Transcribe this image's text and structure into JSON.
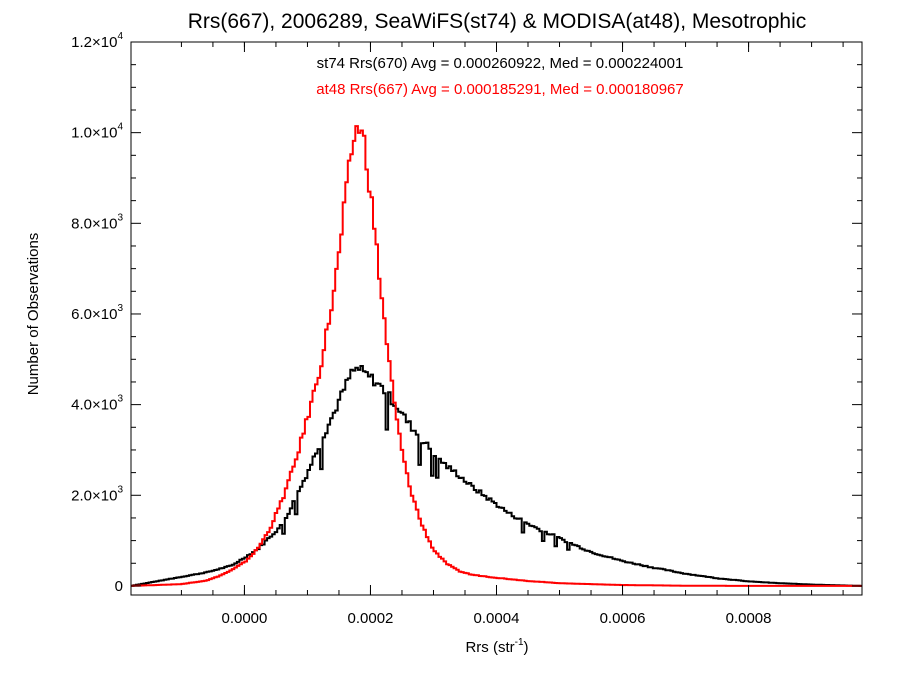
{
  "chart_data": {
    "type": "line",
    "title": "Rrs(667), 2006289, SeaWiFS(st74) & MODISA(at48), Mesotrophic",
    "xlabel": "Rrs (str",
    "xlabel_sup": "-1",
    "xlabel_close": ")",
    "ylabel": "Number of Observations",
    "xlim": [
      -0.00018,
      0.00098
    ],
    "ylim": [
      -200,
      12000
    ],
    "x_ticks": [
      0.0,
      0.0002,
      0.0004,
      0.0006,
      0.0008
    ],
    "x_tick_labels": [
      "0.0000",
      "0.0002",
      "0.0004",
      "0.0006",
      "0.0008"
    ],
    "y_ticks": [
      0,
      2000,
      4000,
      6000,
      8000,
      10000,
      12000
    ],
    "y_tick_labels": [
      {
        "base": "0",
        "exp": ""
      },
      {
        "base": "2.0×10",
        "exp": "3"
      },
      {
        "base": "4.0×10",
        "exp": "3"
      },
      {
        "base": "6.0×10",
        "exp": "3"
      },
      {
        "base": "8.0×10",
        "exp": "3"
      },
      {
        "base": "1.0×10",
        "exp": "4"
      },
      {
        "base": "1.2×10",
        "exp": "4"
      }
    ],
    "grid": false,
    "legend_placement": "top-center",
    "annotations": [
      {
        "text": "st74 Rrs(670) Avg = 0.000260922, Med = 0.000224001",
        "color": "#000000"
      },
      {
        "text": "at48 Rrs(667) Avg = 0.000185291, Med = 0.000180967",
        "color": "#ff0000"
      }
    ],
    "series": [
      {
        "color": "#000000",
        "style": "step",
        "x": [
          -0.00018,
          -0.00012,
          -6e-05,
          -2e-05,
          2e-05,
          6e-05,
          8e-05,
          0.0001,
          0.00012,
          0.00014,
          0.00016,
          0.00017,
          0.00018,
          0.0002,
          0.00022,
          0.00024,
          0.00026,
          0.00028,
          0.0003,
          0.00032,
          0.00034,
          0.00036,
          0.00038,
          0.0004,
          0.00042,
          0.00044,
          0.00046,
          0.0005,
          0.00055,
          0.0006,
          0.00065,
          0.0007,
          0.00075,
          0.0008,
          0.00085,
          0.0009,
          0.00098
        ],
        "y": [
          0,
          150,
          300,
          450,
          800,
          1350,
          1900,
          2500,
          3150,
          3750,
          4400,
          4700,
          4800,
          4600,
          4350,
          4000,
          3600,
          3250,
          2950,
          2650,
          2450,
          2200,
          2000,
          1800,
          1600,
          1450,
          1300,
          1050,
          750,
          550,
          400,
          270,
          170,
          100,
          60,
          30,
          0
        ]
      },
      {
        "color": "#ff0000",
        "style": "step",
        "x": [
          -0.00018,
          -0.0001,
          -6e-05,
          -4e-05,
          -2e-05,
          0.0,
          2e-05,
          4e-05,
          6e-05,
          8e-05,
          0.0001,
          0.00012,
          0.00014,
          0.00015,
          0.00016,
          0.00017,
          0.00018,
          0.00019,
          0.0002,
          0.00021,
          0.00022,
          0.00023,
          0.00024,
          0.00025,
          0.00026,
          0.00028,
          0.0003,
          0.00032,
          0.00034,
          0.00036,
          0.0004,
          0.00045,
          0.0005,
          0.0006,
          0.0007,
          0.0008,
          0.0009,
          0.00098
        ],
        "y": [
          0,
          40,
          120,
          220,
          350,
          520,
          800,
          1250,
          1900,
          2700,
          3700,
          4800,
          6300,
          7300,
          8500,
          9600,
          10200,
          9800,
          8700,
          7400,
          6100,
          4900,
          3800,
          3000,
          2300,
          1400,
          800,
          500,
          330,
          250,
          180,
          110,
          60,
          20,
          5,
          0,
          0,
          0
        ]
      }
    ]
  }
}
